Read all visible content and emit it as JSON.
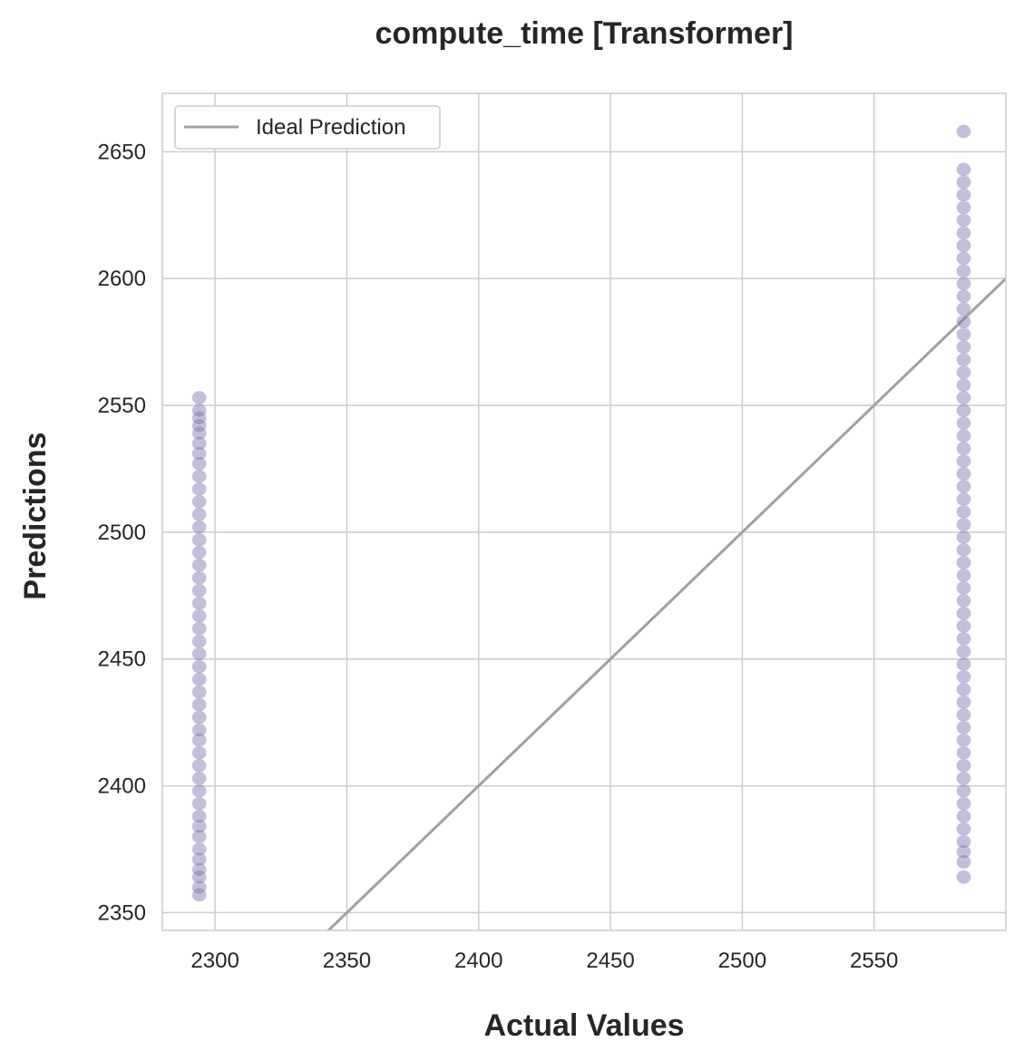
{
  "chart_data": {
    "type": "scatter",
    "title": "compute_time [Transformer]",
    "xlabel": "Actual Values",
    "ylabel": "Predictions",
    "xlim": [
      2280,
      2600
    ],
    "ylim": [
      2343,
      2673
    ],
    "xticks": [
      2300,
      2350,
      2400,
      2450,
      2500,
      2550
    ],
    "yticks": [
      2350,
      2400,
      2450,
      2500,
      2550,
      2600,
      2650
    ],
    "grid": true,
    "legend": {
      "placement": "top-left",
      "entries": [
        "Ideal Prediction"
      ]
    },
    "series": [
      {
        "kind": "scatter",
        "color": "#7b6fb0",
        "points": [
          {
            "x": 2294,
            "y": 2357
          },
          {
            "x": 2294,
            "y": 2360
          },
          {
            "x": 2294,
            "y": 2364
          },
          {
            "x": 2294,
            "y": 2367
          },
          {
            "x": 2294,
            "y": 2371
          },
          {
            "x": 2294,
            "y": 2375
          },
          {
            "x": 2294,
            "y": 2380
          },
          {
            "x": 2294,
            "y": 2384
          },
          {
            "x": 2294,
            "y": 2388
          },
          {
            "x": 2294,
            "y": 2393
          },
          {
            "x": 2294,
            "y": 2398
          },
          {
            "x": 2294,
            "y": 2403
          },
          {
            "x": 2294,
            "y": 2408
          },
          {
            "x": 2294,
            "y": 2413
          },
          {
            "x": 2294,
            "y": 2418
          },
          {
            "x": 2294,
            "y": 2422
          },
          {
            "x": 2294,
            "y": 2427
          },
          {
            "x": 2294,
            "y": 2432
          },
          {
            "x": 2294,
            "y": 2437
          },
          {
            "x": 2294,
            "y": 2442
          },
          {
            "x": 2294,
            "y": 2447
          },
          {
            "x": 2294,
            "y": 2452
          },
          {
            "x": 2294,
            "y": 2457
          },
          {
            "x": 2294,
            "y": 2462
          },
          {
            "x": 2294,
            "y": 2467
          },
          {
            "x": 2294,
            "y": 2472
          },
          {
            "x": 2294,
            "y": 2477
          },
          {
            "x": 2294,
            "y": 2482
          },
          {
            "x": 2294,
            "y": 2487
          },
          {
            "x": 2294,
            "y": 2492
          },
          {
            "x": 2294,
            "y": 2497
          },
          {
            "x": 2294,
            "y": 2502
          },
          {
            "x": 2294,
            "y": 2507
          },
          {
            "x": 2294,
            "y": 2512
          },
          {
            "x": 2294,
            "y": 2517
          },
          {
            "x": 2294,
            "y": 2522
          },
          {
            "x": 2294,
            "y": 2527
          },
          {
            "x": 2294,
            "y": 2531
          },
          {
            "x": 2294,
            "y": 2535
          },
          {
            "x": 2294,
            "y": 2539
          },
          {
            "x": 2294,
            "y": 2542
          },
          {
            "x": 2294,
            "y": 2545
          },
          {
            "x": 2294,
            "y": 2548
          },
          {
            "x": 2294,
            "y": 2553
          },
          {
            "x": 2584,
            "y": 2364
          },
          {
            "x": 2584,
            "y": 2370
          },
          {
            "x": 2584,
            "y": 2374
          },
          {
            "x": 2584,
            "y": 2378
          },
          {
            "x": 2584,
            "y": 2383
          },
          {
            "x": 2584,
            "y": 2388
          },
          {
            "x": 2584,
            "y": 2393
          },
          {
            "x": 2584,
            "y": 2398
          },
          {
            "x": 2584,
            "y": 2403
          },
          {
            "x": 2584,
            "y": 2408
          },
          {
            "x": 2584,
            "y": 2413
          },
          {
            "x": 2584,
            "y": 2418
          },
          {
            "x": 2584,
            "y": 2423
          },
          {
            "x": 2584,
            "y": 2428
          },
          {
            "x": 2584,
            "y": 2433
          },
          {
            "x": 2584,
            "y": 2438
          },
          {
            "x": 2584,
            "y": 2443
          },
          {
            "x": 2584,
            "y": 2448
          },
          {
            "x": 2584,
            "y": 2453
          },
          {
            "x": 2584,
            "y": 2458
          },
          {
            "x": 2584,
            "y": 2463
          },
          {
            "x": 2584,
            "y": 2468
          },
          {
            "x": 2584,
            "y": 2473
          },
          {
            "x": 2584,
            "y": 2478
          },
          {
            "x": 2584,
            "y": 2483
          },
          {
            "x": 2584,
            "y": 2488
          },
          {
            "x": 2584,
            "y": 2493
          },
          {
            "x": 2584,
            "y": 2498
          },
          {
            "x": 2584,
            "y": 2503
          },
          {
            "x": 2584,
            "y": 2508
          },
          {
            "x": 2584,
            "y": 2513
          },
          {
            "x": 2584,
            "y": 2518
          },
          {
            "x": 2584,
            "y": 2523
          },
          {
            "x": 2584,
            "y": 2528
          },
          {
            "x": 2584,
            "y": 2533
          },
          {
            "x": 2584,
            "y": 2538
          },
          {
            "x": 2584,
            "y": 2543
          },
          {
            "x": 2584,
            "y": 2548
          },
          {
            "x": 2584,
            "y": 2553
          },
          {
            "x": 2584,
            "y": 2558
          },
          {
            "x": 2584,
            "y": 2563
          },
          {
            "x": 2584,
            "y": 2568
          },
          {
            "x": 2584,
            "y": 2573
          },
          {
            "x": 2584,
            "y": 2578
          },
          {
            "x": 2584,
            "y": 2583
          },
          {
            "x": 2584,
            "y": 2588
          },
          {
            "x": 2584,
            "y": 2593
          },
          {
            "x": 2584,
            "y": 2598
          },
          {
            "x": 2584,
            "y": 2603
          },
          {
            "x": 2584,
            "y": 2608
          },
          {
            "x": 2584,
            "y": 2613
          },
          {
            "x": 2584,
            "y": 2618
          },
          {
            "x": 2584,
            "y": 2623
          },
          {
            "x": 2584,
            "y": 2628
          },
          {
            "x": 2584,
            "y": 2633
          },
          {
            "x": 2584,
            "y": 2638
          },
          {
            "x": 2584,
            "y": 2643
          },
          {
            "x": 2584,
            "y": 2658
          }
        ]
      },
      {
        "name": "Ideal Prediction",
        "kind": "line",
        "color": "#a0a0a0",
        "points": [
          {
            "x": 2280,
            "y": 2280
          },
          {
            "x": 2600,
            "y": 2600
          }
        ]
      }
    ]
  }
}
